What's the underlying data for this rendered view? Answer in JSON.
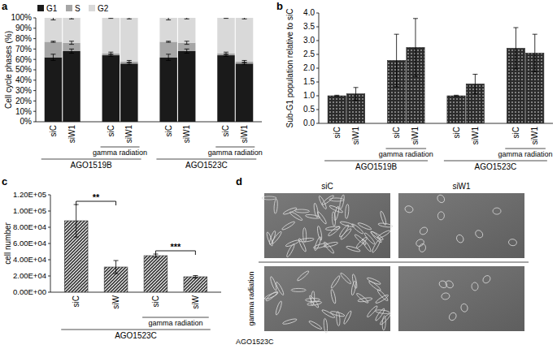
{
  "chart_data": [
    {
      "type": "bar",
      "panel_label": "a",
      "stacked": true,
      "y_label": "Cell cycle phases (%)",
      "categories": [
        "siC",
        "siW1",
        "siC",
        "siW1",
        "siC",
        "siW1",
        "siC",
        "siW1"
      ],
      "annotations": [
        {
          "text": "gamma radiation",
          "from": 2,
          "to": 3
        },
        {
          "text": "gamma radiation",
          "from": 6,
          "to": 7
        }
      ],
      "groups": [
        {
          "text": "AGO1519B",
          "from": 0,
          "to": 3
        },
        {
          "text": "AGO1523C",
          "from": 4,
          "to": 7
        }
      ],
      "series": [
        {
          "name": "G1",
          "color": "#1a1a1a",
          "values": [
            62,
            68,
            64,
            56,
            62,
            68,
            64,
            56
          ],
          "errors": [
            3,
            2,
            1,
            1,
            3,
            2,
            1,
            1
          ]
        },
        {
          "name": "S",
          "color": "#a6a6a6",
          "values": [
            15,
            8,
            2,
            2,
            15,
            8,
            2,
            2
          ],
          "errors": [
            0.5,
            1.5,
            1,
            1,
            0.5,
            1.5,
            1,
            1
          ]
        },
        {
          "name": "G2",
          "color": "#d9d9d9",
          "values": [
            23,
            24,
            34,
            42,
            23,
            24,
            34,
            42
          ],
          "errors": [
            2,
            1,
            0.5,
            1,
            2,
            1,
            0.5,
            1
          ]
        }
      ],
      "ylim": [
        0,
        100
      ],
      "yticks": [
        {
          "value": 0,
          "label": "0%"
        },
        {
          "value": 10,
          "label": "10%"
        },
        {
          "value": 20,
          "label": "20%"
        },
        {
          "value": 30,
          "label": "30%"
        },
        {
          "value": 40,
          "label": "40%"
        },
        {
          "value": 50,
          "label": "50%"
        },
        {
          "value": 60,
          "label": "60%"
        },
        {
          "value": 70,
          "label": "70%"
        },
        {
          "value": 80,
          "label": "80%"
        },
        {
          "value": 90,
          "label": "90%"
        },
        {
          "value": 100,
          "label": "100%"
        }
      ],
      "legend": "top-left",
      "grid": false
    },
    {
      "type": "bar",
      "panel_label": "b",
      "y_label": "Sub-G1 population relative to siC",
      "categories": [
        "siC",
        "siW1",
        "siC",
        "siW1",
        "siC",
        "siW1",
        "siC",
        "siW1"
      ],
      "annotations": [
        {
          "text": "gamma radiation",
          "from": 2,
          "to": 3
        },
        {
          "text": "gamma radiation",
          "from": 6,
          "to": 7
        }
      ],
      "groups": [
        {
          "text": "AGO1519B",
          "from": 0,
          "to": 3
        },
        {
          "text": "AGO1523C",
          "from": 4,
          "to": 7
        }
      ],
      "values": [
        1.0,
        1.07,
        2.28,
        2.75,
        1.0,
        1.43,
        2.72,
        2.55
      ],
      "errors": [
        0.02,
        0.23,
        0.95,
        1.05,
        0.02,
        0.35,
        0.75,
        0.68
      ],
      "color": "#2b2b2b",
      "ylim": [
        0,
        4
      ],
      "yticks": [
        {
          "value": 0,
          "label": "0.0"
        },
        0.5,
        {
          "value": 1,
          "label": "1.0"
        },
        1.5,
        {
          "value": 2,
          "label": "2.0"
        },
        2.5,
        {
          "value": 3,
          "label": "3.0"
        },
        3.5,
        {
          "value": 4,
          "label": "4.0"
        }
      ],
      "grid": false
    },
    {
      "type": "bar",
      "panel_label": "c",
      "y_label": "cell number",
      "categories": [
        "siC",
        "siW",
        "siC",
        "siW"
      ],
      "annotations": [
        {
          "text": "gamma radiation",
          "from": 2,
          "to": 3
        }
      ],
      "groups": [
        {
          "text": "AGO1523C",
          "from": 0,
          "to": 3
        }
      ],
      "values": [
        88000,
        31000,
        45000,
        19000
      ],
      "errors": [
        20000,
        8000,
        2000,
        1500
      ],
      "significance": [
        {
          "from": 0,
          "to": 1,
          "label": "**"
        },
        {
          "from": 2,
          "to": 3,
          "label": "***"
        }
      ],
      "color": "#333333",
      "ylim": [
        0,
        120000
      ],
      "yticks": [
        {
          "value": 0,
          "label": "0.00E+00"
        },
        {
          "value": 20000,
          "label": "2.00E+04"
        },
        {
          "value": 40000,
          "label": "4.00E+04"
        },
        {
          "value": 60000,
          "label": "6.00E+04"
        },
        {
          "value": 80000,
          "label": "8.00E+04"
        },
        {
          "value": 100000,
          "label": "1.00E+05"
        },
        {
          "value": 120000,
          "label": "1.20E+05"
        }
      ],
      "grid": false
    }
  ],
  "panel_d": {
    "panel_label": "d",
    "columns": [
      "siC",
      "siW1"
    ],
    "row_label": "gamma radiation",
    "caption": "AGO1523C"
  }
}
